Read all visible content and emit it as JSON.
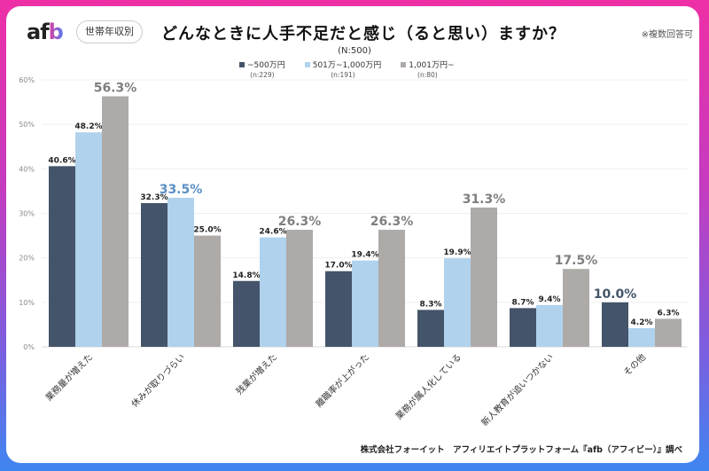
{
  "header": {
    "logo": "afb",
    "tag": "世帯年収別",
    "title": "どんなときに人手不足だと感じ（ると思い）ますか？",
    "note": "※複数回答可",
    "total_n": "(N:500)"
  },
  "legend": [
    {
      "label": "~500万円",
      "n": "(n:229)",
      "color": "#44546a"
    },
    {
      "label": "501万~1,000万円",
      "n": "(n:191)",
      "color": "#b0d2ec"
    },
    {
      "label": "1,001万円~",
      "n": "(n:80)",
      "color": "#aeaaa8"
    }
  ],
  "source": "株式会社フォーイット　アフィリエイトプラットフォーム『afb（アフィビー）』調べ",
  "chart_data": {
    "type": "bar",
    "title": "どんなときに人手不足だと感じ（ると思い）ますか？",
    "xlabel": "",
    "ylabel": "",
    "ylim": [
      0,
      60
    ],
    "yticks": [
      "0%",
      "10%",
      "20%",
      "30%",
      "40%",
      "50%",
      "60%"
    ],
    "ytick_values": [
      0,
      10,
      20,
      30,
      40,
      50,
      60
    ],
    "grid": true,
    "legend_position": "top-center",
    "categories": [
      "業務量が増えた",
      "休みが取りづらい",
      "残業が増えた",
      "離職率が上がった",
      "業務が属人化している",
      "新人教育が追いつかない",
      "その他"
    ],
    "series": [
      {
        "name": "~500万円",
        "n": 229,
        "color": "#44546a",
        "values": [
          40.6,
          32.3,
          14.8,
          17.0,
          8.3,
          8.7,
          10.0
        ]
      },
      {
        "name": "501万~1,000万円",
        "n": 191,
        "color": "#b0d2ec",
        "values": [
          48.2,
          33.5,
          24.6,
          19.4,
          19.9,
          9.4,
          4.2
        ]
      },
      {
        "name": "1,001万円~",
        "n": 80,
        "color": "#aeaaa8",
        "values": [
          56.3,
          25.0,
          26.3,
          26.3,
          31.3,
          17.5,
          6.3
        ]
      }
    ],
    "highlights": [
      {
        "category_index": 0,
        "series_index": 2,
        "color": "#7f7f7f"
      },
      {
        "category_index": 1,
        "series_index": 1,
        "color": "#5b8fc7"
      },
      {
        "category_index": 2,
        "series_index": 2,
        "color": "#7f7f7f"
      },
      {
        "category_index": 3,
        "series_index": 2,
        "color": "#7f7f7f"
      },
      {
        "category_index": 4,
        "series_index": 2,
        "color": "#7f7f7f"
      },
      {
        "category_index": 5,
        "series_index": 2,
        "color": "#7f7f7f"
      },
      {
        "category_index": 6,
        "series_index": 0,
        "color": "#44546a"
      }
    ]
  }
}
